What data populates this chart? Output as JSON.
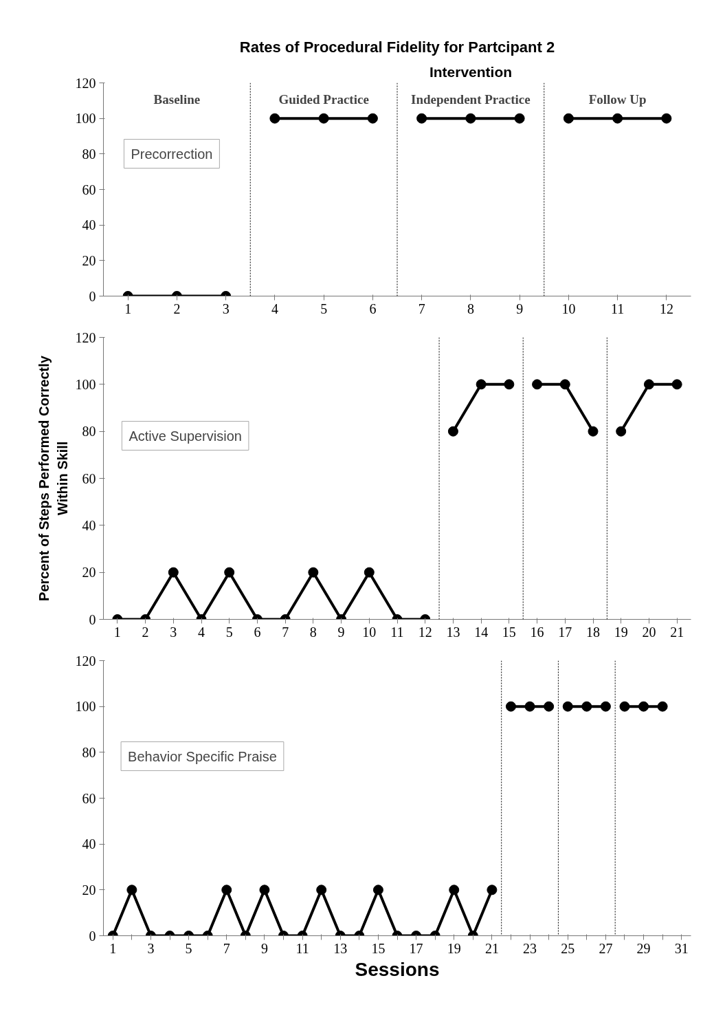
{
  "chart_data": [
    {
      "type": "line",
      "title": "Rates of Procedural Fidelity for Partcipant 2",
      "annotations": [
        "Intervention",
        "Baseline",
        "Guided Practice",
        "Independent Practice",
        "Follow Up",
        "Precorrection"
      ],
      "x": [
        1,
        2,
        3,
        4,
        5,
        6,
        7,
        8,
        9,
        10,
        11,
        12
      ],
      "xlim": [
        0.5,
        12.5
      ],
      "xticks": [
        1,
        2,
        3,
        4,
        5,
        6,
        7,
        8,
        9,
        10,
        11,
        12
      ],
      "ylim": [
        0,
        120
      ],
      "yticks": [
        0,
        20,
        40,
        60,
        80,
        100,
        120
      ],
      "series": [
        {
          "color": "#000000",
          "values": [
            0,
            0,
            0,
            null,
            null,
            null,
            null,
            null,
            null,
            null,
            null,
            null
          ]
        },
        {
          "color": "#000000",
          "values": [
            null,
            null,
            null,
            100,
            100,
            100,
            null,
            null,
            null,
            null,
            null,
            null
          ]
        },
        {
          "color": "#000000",
          "values": [
            null,
            null,
            null,
            null,
            null,
            null,
            100,
            100,
            100,
            null,
            null,
            null
          ]
        },
        {
          "color": "#000000",
          "values": [
            null,
            null,
            null,
            null,
            null,
            null,
            null,
            null,
            null,
            100,
            100,
            100
          ]
        }
      ],
      "ref_lines": [
        {
          "axis": "x",
          "value": 3.5,
          "color": "#000000",
          "line_style": "dotted"
        },
        {
          "axis": "x",
          "value": 6.5,
          "color": "#000000",
          "line_style": "dotted"
        },
        {
          "axis": "x",
          "value": 9.5,
          "color": "#000000",
          "line_style": "dotted"
        }
      ],
      "grid": false,
      "marker": "circle",
      "line_style": "solid"
    },
    {
      "type": "line",
      "ylabel": "Percent of Steps Performed Correctly Within Skill",
      "annotations": [
        "Active Supervision"
      ],
      "x": [
        1,
        2,
        3,
        4,
        5,
        6,
        7,
        8,
        9,
        10,
        11,
        12,
        13,
        14,
        15,
        16,
        17,
        18,
        19,
        20,
        21
      ],
      "xlim": [
        0.5,
        21.5
      ],
      "xticks": [
        1,
        2,
        3,
        4,
        5,
        6,
        7,
        8,
        9,
        10,
        11,
        12,
        13,
        14,
        15,
        16,
        17,
        18,
        19,
        20,
        21
      ],
      "ylim": [
        0,
        120
      ],
      "yticks": [
        0,
        20,
        40,
        60,
        80,
        100,
        120
      ],
      "series": [
        {
          "color": "#000000",
          "values": [
            0,
            0,
            20,
            0,
            20,
            0,
            0,
            20,
            0,
            20,
            0,
            0,
            null,
            null,
            null,
            null,
            null,
            null,
            null,
            null,
            null
          ]
        },
        {
          "color": "#000000",
          "values": [
            null,
            null,
            null,
            null,
            null,
            null,
            null,
            null,
            null,
            null,
            null,
            null,
            80,
            100,
            100,
            null,
            null,
            null,
            null,
            null,
            null
          ]
        },
        {
          "color": "#000000",
          "values": [
            null,
            null,
            null,
            null,
            null,
            null,
            null,
            null,
            null,
            null,
            null,
            null,
            null,
            null,
            null,
            100,
            100,
            80,
            null,
            null,
            null
          ]
        },
        {
          "color": "#000000",
          "values": [
            null,
            null,
            null,
            null,
            null,
            null,
            null,
            null,
            null,
            null,
            null,
            null,
            null,
            null,
            null,
            null,
            null,
            null,
            80,
            100,
            100
          ]
        }
      ],
      "ref_lines": [
        {
          "axis": "x",
          "value": 12.5,
          "color": "#000000",
          "line_style": "dotted"
        },
        {
          "axis": "x",
          "value": 15.5,
          "color": "#000000",
          "line_style": "dotted"
        },
        {
          "axis": "x",
          "value": 18.5,
          "color": "#000000",
          "line_style": "dotted"
        }
      ],
      "grid": false,
      "marker": "circle",
      "line_style": "solid"
    },
    {
      "type": "line",
      "xlabel": "Sessions",
      "annotations": [
        "Behavior Specific Praise"
      ],
      "x": [
        1,
        2,
        3,
        4,
        5,
        6,
        7,
        8,
        9,
        10,
        11,
        12,
        13,
        14,
        15,
        16,
        17,
        18,
        19,
        20,
        21,
        22,
        23,
        24,
        25,
        26,
        27,
        28,
        29,
        30
      ],
      "xlim": [
        0.5,
        31.5
      ],
      "xticks": [
        1,
        {
          "value": 2,
          "label": null
        },
        3,
        {
          "value": 4,
          "label": null
        },
        5,
        {
          "value": 6,
          "label": null
        },
        7,
        {
          "value": 8,
          "label": null
        },
        9,
        {
          "value": 10,
          "label": null
        },
        11,
        {
          "value": 12,
          "label": null
        },
        13,
        {
          "value": 14,
          "label": null
        },
        15,
        {
          "value": 16,
          "label": null
        },
        17,
        {
          "value": 18,
          "label": null
        },
        19,
        {
          "value": 20,
          "label": null
        },
        21,
        {
          "value": 22,
          "label": null
        },
        23,
        {
          "value": 24,
          "label": null
        },
        25,
        {
          "value": 26,
          "label": null
        },
        27,
        {
          "value": 28,
          "label": null
        },
        29,
        {
          "value": 30,
          "label": null
        },
        31
      ],
      "ylim": [
        0,
        120
      ],
      "yticks": [
        0,
        20,
        40,
        60,
        80,
        100,
        120
      ],
      "series": [
        {
          "color": "#000000",
          "values": [
            0,
            20,
            0,
            0,
            0,
            0,
            20,
            0,
            20,
            0,
            0,
            20,
            0,
            0,
            20,
            0,
            0,
            0,
            20,
            0,
            20,
            null,
            null,
            null,
            null,
            null,
            null,
            null,
            null,
            null
          ]
        },
        {
          "color": "#000000",
          "values": [
            null,
            null,
            null,
            null,
            null,
            null,
            null,
            null,
            null,
            null,
            null,
            null,
            null,
            null,
            null,
            null,
            null,
            null,
            null,
            null,
            null,
            100,
            100,
            100,
            null,
            null,
            null,
            null,
            null,
            null
          ]
        },
        {
          "color": "#000000",
          "values": [
            null,
            null,
            null,
            null,
            null,
            null,
            null,
            null,
            null,
            null,
            null,
            null,
            null,
            null,
            null,
            null,
            null,
            null,
            null,
            null,
            null,
            null,
            null,
            null,
            100,
            100,
            100,
            null,
            null,
            null
          ]
        },
        {
          "color": "#000000",
          "values": [
            null,
            null,
            null,
            null,
            null,
            null,
            null,
            null,
            null,
            null,
            null,
            null,
            null,
            null,
            null,
            null,
            null,
            null,
            null,
            null,
            null,
            null,
            null,
            null,
            null,
            null,
            null,
            100,
            100,
            100
          ]
        }
      ],
      "ref_lines": [
        {
          "axis": "x",
          "value": 21.5,
          "color": "#000000",
          "line_style": "dotted"
        },
        {
          "axis": "x",
          "value": 24.5,
          "color": "#000000",
          "line_style": "dotted"
        },
        {
          "axis": "x",
          "value": 27.5,
          "color": "#000000",
          "line_style": "dotted"
        }
      ],
      "grid": false,
      "marker": "circle",
      "line_style": "solid"
    }
  ]
}
